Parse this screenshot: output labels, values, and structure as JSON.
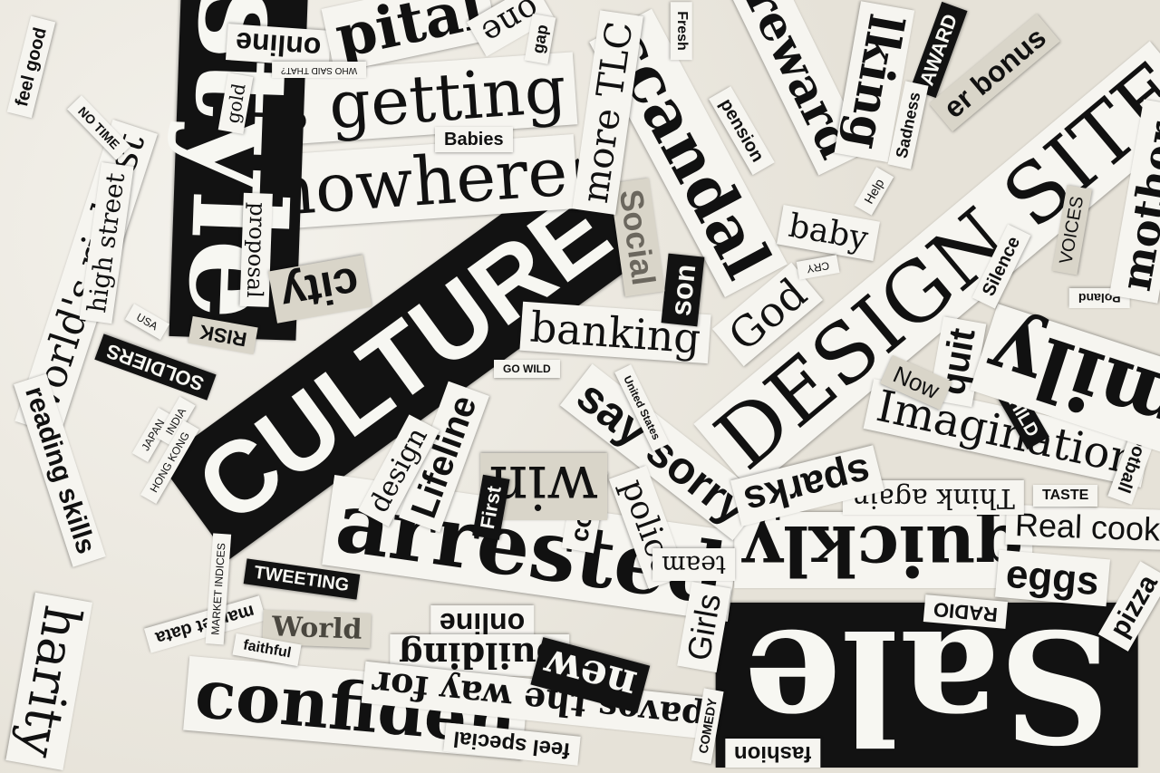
{
  "clippings": [
    {
      "id": "culture",
      "text": "CULTURE"
    },
    {
      "id": "design_site",
      "text": "DESIGN SITE"
    },
    {
      "id": "sale",
      "text": "Sale"
    },
    {
      "id": "arrested",
      "text": "arrested"
    },
    {
      "id": "is_getting",
      "text": "is getting"
    },
    {
      "id": "nowhere",
      "text": "nowhere"
    },
    {
      "id": "scandal",
      "text": "scandal"
    },
    {
      "id": "quickly",
      "text": "quickly"
    },
    {
      "id": "confidence",
      "text": "confiden"
    },
    {
      "id": "imagination",
      "text": "Imagination"
    },
    {
      "id": "say_sorry",
      "text": "say sorry"
    },
    {
      "id": "banking",
      "text": "banking"
    },
    {
      "id": "worlds_richest",
      "text": "world's richest"
    },
    {
      "id": "reading_skills",
      "text": "reading skills"
    },
    {
      "id": "high_street",
      "text": "high street"
    },
    {
      "id": "style",
      "text": "style"
    },
    {
      "id": "online_top",
      "text": "online"
    },
    {
      "id": "online_mid",
      "text": "online"
    },
    {
      "id": "building",
      "text": "building"
    },
    {
      "id": "paves_the_way",
      "text": "paves the way for"
    },
    {
      "id": "new",
      "text": "new"
    },
    {
      "id": "lifeline",
      "text": "Lifeline"
    },
    {
      "id": "police",
      "text": "police"
    },
    {
      "id": "court",
      "text": "court"
    },
    {
      "id": "win",
      "text": "win"
    },
    {
      "id": "first",
      "text": "First"
    },
    {
      "id": "design",
      "text": "design"
    },
    {
      "id": "girls",
      "text": "Girls"
    },
    {
      "id": "team",
      "text": "team"
    },
    {
      "id": "eggs",
      "text": "eggs"
    },
    {
      "id": "real_cooking",
      "text": "Real cooki"
    },
    {
      "id": "pizza",
      "text": "pizza"
    },
    {
      "id": "radio",
      "text": "RADIO"
    },
    {
      "id": "think_again",
      "text": "Think again"
    },
    {
      "id": "taste",
      "text": "TASTE"
    },
    {
      "id": "sparks",
      "text": "sparks"
    },
    {
      "id": "football",
      "text": "football"
    },
    {
      "id": "child",
      "text": "CHILD"
    },
    {
      "id": "quit",
      "text": "quit"
    },
    {
      "id": "now",
      "text": "Now"
    },
    {
      "id": "family",
      "text": "mily"
    },
    {
      "id": "poland",
      "text": "Poland"
    },
    {
      "id": "silence",
      "text": "Silence"
    },
    {
      "id": "mother",
      "text": "mother."
    },
    {
      "id": "voices",
      "text": "VOICES"
    },
    {
      "id": "baby",
      "text": "baby"
    },
    {
      "id": "god",
      "text": "God"
    },
    {
      "id": "son",
      "text": "son"
    },
    {
      "id": "social",
      "text": "Social"
    },
    {
      "id": "more_tlc",
      "text": "more TLC"
    },
    {
      "id": "fresh",
      "text": "Fresh"
    },
    {
      "id": "pension",
      "text": "pension"
    },
    {
      "id": "reward",
      "text": "reward"
    },
    {
      "id": "talking",
      "text": "lking"
    },
    {
      "id": "award",
      "text": "AWARD"
    },
    {
      "id": "sadness",
      "text": "Sadness"
    },
    {
      "id": "bonus",
      "text": "er bonus"
    },
    {
      "id": "help",
      "text": "Help"
    },
    {
      "id": "cry",
      "text": "CRY"
    },
    {
      "id": "babies",
      "text": "Babies"
    },
    {
      "id": "capital",
      "text": "pital"
    },
    {
      "id": "one",
      "text": "one"
    },
    {
      "id": "gap",
      "text": "gap"
    },
    {
      "id": "who_said_that",
      "text": "WHO SAID THAT?"
    },
    {
      "id": "gold",
      "text": "gold"
    },
    {
      "id": "feel_good",
      "text": "feel good"
    },
    {
      "id": "no_time",
      "text": "NO TIME"
    },
    {
      "id": "proposal",
      "text": "proposal"
    },
    {
      "id": "city",
      "text": "city"
    },
    {
      "id": "risk",
      "text": "RISK"
    },
    {
      "id": "soldiers",
      "text": "SOLDIERS"
    },
    {
      "id": "go_wild",
      "text": "GO WILD"
    },
    {
      "id": "united_states",
      "text": "United States"
    },
    {
      "id": "tweeting",
      "text": "TWEETING"
    },
    {
      "id": "market_data",
      "text": "market data"
    },
    {
      "id": "world",
      "text": "World"
    },
    {
      "id": "faithful",
      "text": "faithful"
    },
    {
      "id": "feel_special",
      "text": "feel special"
    },
    {
      "id": "comedy",
      "text": "COMEDY"
    },
    {
      "id": "fashion",
      "text": "fashion"
    },
    {
      "id": "charity",
      "text": "harity"
    },
    {
      "id": "market_indices",
      "text": "MARKET INDICES"
    },
    {
      "id": "usa",
      "text": "USA"
    },
    {
      "id": "japan",
      "text": "JAPAN"
    },
    {
      "id": "india",
      "text": "INDIA"
    },
    {
      "id": "hong_kong",
      "text": "HONG KONG"
    }
  ]
}
